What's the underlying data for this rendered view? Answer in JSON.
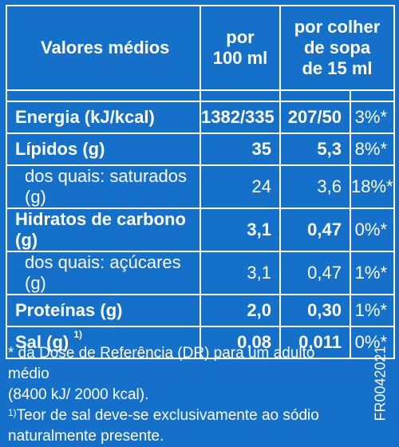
{
  "header": {
    "col1": "Valores médios",
    "col2_line1": "por",
    "col2_line2": "100 ml",
    "col3_line1": "por colher",
    "col3_line2": "de sopa",
    "col3_line3": "de 15 ml"
  },
  "rows": [
    {
      "name": "Energia (kJ/kcal)",
      "per100": "1382/335",
      "perSpoon": "207/50",
      "pct": "3%*"
    },
    {
      "name": "Lípidos (g)",
      "per100": "35",
      "perSpoon": "5,3",
      "pct": "8%*"
    },
    {
      "name": "dos quais: saturados (g)",
      "per100": "24",
      "perSpoon": "3,6",
      "pct": "18%*"
    },
    {
      "name": "Hidratos de carbono (g)",
      "per100": "3,1",
      "perSpoon": "0,47",
      "pct": "0%*"
    },
    {
      "name": "dos quais: açúcares (g)",
      "per100": "3,1",
      "perSpoon": "0,47",
      "pct": "1%*"
    },
    {
      "name": "Proteínas (g)",
      "per100": "2,0",
      "perSpoon": "0,30",
      "pct": "1%*"
    },
    {
      "name": "Sal (g)",
      "sup": "1)",
      "per100": "0,08",
      "perSpoon": "0,011",
      "pct": "0%*"
    }
  ],
  "notes": {
    "line1": "* da Dose de Referência (DR) para um adulto médio",
    "line2": "(8400 kJ/ 2000 kcal).",
    "line3_sup": "1)",
    "line3": "Teor de sal deve-se exclusivamente ao sódio",
    "line4": "naturalmente presente."
  },
  "code": "FR0042021",
  "colors": {
    "background": "#1570c9",
    "text": "#ffffff"
  }
}
